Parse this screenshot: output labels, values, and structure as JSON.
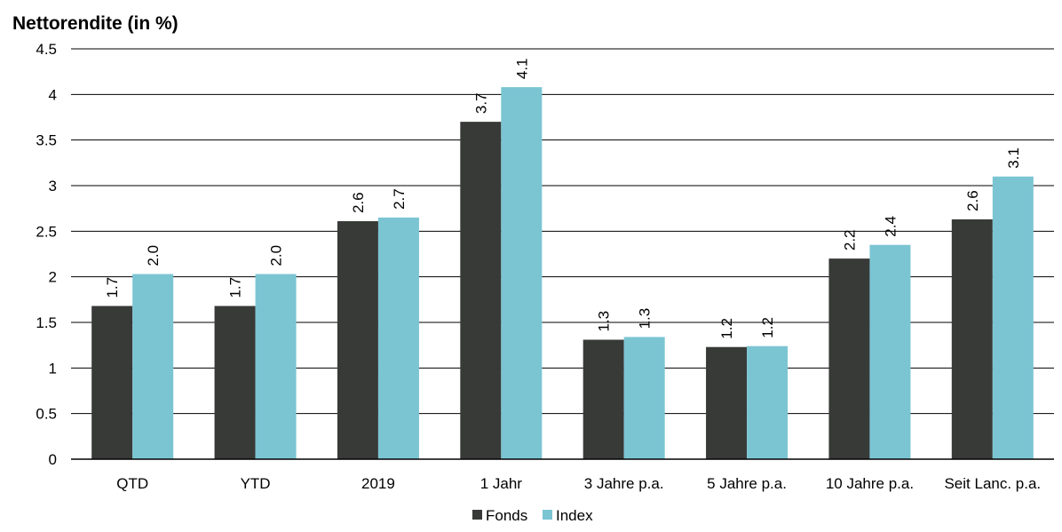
{
  "chart_data": {
    "type": "bar",
    "title": "Nettorendite (in %)",
    "categories": [
      "QTD",
      "YTD",
      "2019",
      "1 Jahr",
      "3 Jahre p.a.",
      "5 Jahre p.a.",
      "10 Jahre p.a.",
      "Seit Lanc. p.a."
    ],
    "series": [
      {
        "name": "Fonds",
        "values": [
          1.68,
          1.68,
          2.61,
          3.7,
          1.31,
          1.23,
          2.2,
          2.63
        ],
        "labels": [
          "1.7",
          "1.7",
          "2.6",
          "3.7",
          "1.3",
          "1.2",
          "2.2",
          "2.6"
        ],
        "color": "#383a38"
      },
      {
        "name": "Index",
        "values": [
          2.03,
          2.03,
          2.65,
          4.08,
          1.34,
          1.24,
          2.35,
          3.1
        ],
        "labels": [
          "2.0",
          "2.0",
          "2.7",
          "4.1",
          "1.3",
          "1.2",
          "2.4",
          "3.1"
        ],
        "color": "#7bc5d3"
      }
    ],
    "yticks": [
      "0",
      "0.5",
      "1",
      "1.5",
      "2",
      "2.5",
      "3",
      "3.5",
      "4",
      "4.5"
    ],
    "ylim": [
      0,
      4.5
    ],
    "grid": true,
    "legend": "bottom-center",
    "xlabel": "",
    "ylabel": ""
  }
}
